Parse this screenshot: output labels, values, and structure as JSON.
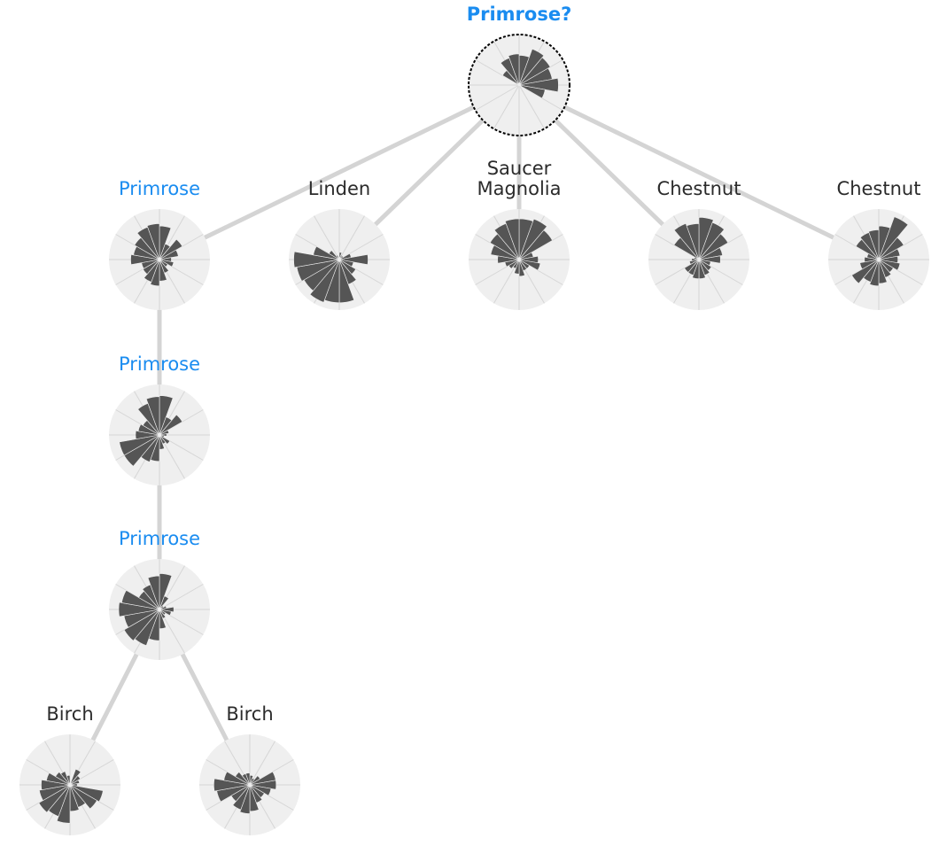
{
  "colors": {
    "background": "#ffffff",
    "edge": "#d4d4d4",
    "disc": "#efefef",
    "grid": "#d6d6d6",
    "wedge": "#555555",
    "label_default": "#2b2b2b",
    "label_highlight": "#1a8cf0"
  },
  "tree": {
    "root": "root",
    "nodes": [
      {
        "id": "root",
        "label_lines": [
          "Primrose?"
        ],
        "highlight": true,
        "bold": true,
        "query": true,
        "petals": [
          0.62,
          0.8,
          0.75,
          0.7,
          0.82,
          0.55,
          0.05,
          0.02,
          0.02,
          0.02,
          0.02,
          0.02,
          0.02,
          0.02,
          0.05,
          0.4,
          0.6,
          0.65
        ]
      },
      {
        "id": "primrose-1",
        "label_lines": [
          "Primrose"
        ],
        "highlight": true,
        "bold": false,
        "petals": [
          0.7,
          0.35,
          0.55,
          0.4,
          0.25,
          0.3,
          0.2,
          0.3,
          0.45,
          0.55,
          0.5,
          0.4,
          0.38,
          0.6,
          0.55,
          0.6,
          0.72,
          0.75
        ]
      },
      {
        "id": "linden",
        "label_lines": [
          "Linden"
        ],
        "highlight": false,
        "bold": false,
        "petals": [
          0.15,
          0.1,
          0.1,
          0.25,
          0.6,
          0.3,
          0.4,
          0.55,
          0.9,
          0.9,
          0.95,
          0.85,
          0.9,
          0.95,
          0.55,
          0.25,
          0.1,
          0.05
        ]
      },
      {
        "id": "saucer-magnolia",
        "label_lines": [
          "Saucer",
          "Magnolia"
        ],
        "highlight": false,
        "bold": false,
        "petals": [
          0.85,
          0.9,
          0.8,
          0.3,
          0.4,
          0.45,
          0.25,
          0.25,
          0.35,
          0.3,
          0.2,
          0.25,
          0.3,
          0.45,
          0.6,
          0.7,
          0.8,
          0.85
        ]
      },
      {
        "id": "chestnut-1",
        "label_lines": [
          "Chestnut"
        ],
        "highlight": false,
        "bold": false,
        "petals": [
          0.88,
          0.82,
          0.7,
          0.5,
          0.45,
          0.25,
          0.3,
          0.35,
          0.4,
          0.4,
          0.35,
          0.35,
          0.2,
          0.15,
          0.1,
          0.6,
          0.8,
          0.75
        ]
      },
      {
        "id": "chestnut-2",
        "label_lines": [
          "Chestnut"
        ],
        "highlight": false,
        "bold": false,
        "petals": [
          0.7,
          0.95,
          0.6,
          0.45,
          0.4,
          0.45,
          0.35,
          0.4,
          0.5,
          0.55,
          0.5,
          0.65,
          0.4,
          0.3,
          0.25,
          0.55,
          0.6,
          0.62
        ]
      },
      {
        "id": "primrose-2",
        "label_lines": [
          "Primrose"
        ],
        "highlight": true,
        "bold": false,
        "petals": [
          0.82,
          0.4,
          0.55,
          0.2,
          0.15,
          0.1,
          0.25,
          0.2,
          0.3,
          0.55,
          0.6,
          0.85,
          0.85,
          0.5,
          0.45,
          0.4,
          0.7,
          0.8
        ]
      },
      {
        "id": "primrose-3",
        "label_lines": [
          "Primrose"
        ],
        "highlight": true,
        "bold": false,
        "petals": [
          0.75,
          0.3,
          0.1,
          0.15,
          0.3,
          0.25,
          0.15,
          0.2,
          0.4,
          0.65,
          0.8,
          0.85,
          0.75,
          0.85,
          0.8,
          0.5,
          0.55,
          0.7
        ]
      },
      {
        "id": "birch-1",
        "label_lines": [
          "Birch"
        ],
        "highlight": false,
        "bold": false,
        "petals": [
          0.05,
          0.35,
          0.25,
          0.2,
          0.15,
          0.7,
          0.65,
          0.5,
          0.55,
          0.8,
          0.7,
          0.75,
          0.65,
          0.6,
          0.5,
          0.35,
          0.3,
          0.2
        ]
      },
      {
        "id": "birch-2",
        "label_lines": [
          "Birch"
        ],
        "highlight": false,
        "bold": false,
        "petals": [
          0.2,
          0.15,
          0.25,
          0.55,
          0.55,
          0.45,
          0.35,
          0.4,
          0.55,
          0.6,
          0.55,
          0.45,
          0.7,
          0.75,
          0.55,
          0.35,
          0.25,
          0.25
        ]
      }
    ],
    "edges": [
      [
        "root",
        "primrose-1"
      ],
      [
        "root",
        "linden"
      ],
      [
        "root",
        "saucer-magnolia"
      ],
      [
        "root",
        "chestnut-1"
      ],
      [
        "root",
        "chestnut-2"
      ],
      [
        "primrose-1",
        "primrose-2"
      ],
      [
        "primrose-2",
        "primrose-3"
      ],
      [
        "primrose-3",
        "birch-1"
      ],
      [
        "primrose-3",
        "birch-2"
      ]
    ]
  }
}
